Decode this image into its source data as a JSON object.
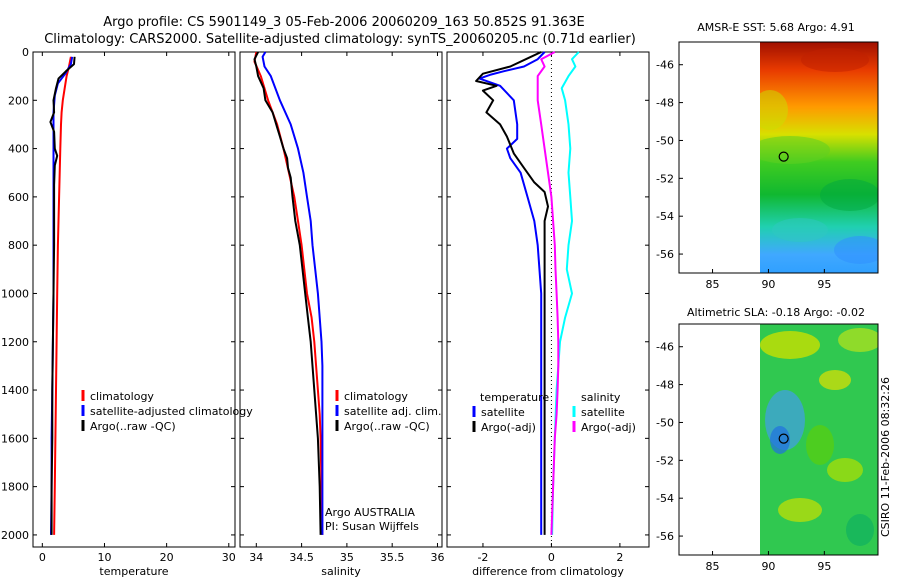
{
  "title_line1": "Argo profile: CS 5901149_3 05-Feb-2006 20060209_163 50.852S 91.363E",
  "title_line2": "Climatology: CARS2000. Satellite-adjusted climatology: synTS_20060205.nc (0.71d earlier)",
  "credit": "CSIRO 11-Feb-2006 08:32:26",
  "colors": {
    "climatology": "#ff0000",
    "satellite": "#0000ff",
    "argo": "#000000",
    "salinity_satellite": "#00ffff",
    "salinity_argo": "#ff00ff"
  },
  "chart_data": [
    {
      "id": "temperature",
      "type": "line",
      "xlabel": "temperature",
      "xlim": [
        -1.5,
        31
      ],
      "ylim": [
        2050,
        0
      ],
      "xticks": [
        "0",
        "10",
        "20",
        "30"
      ],
      "xtick_values": [
        0,
        10,
        20,
        30
      ],
      "yticks": [
        "0",
        "200",
        "400",
        "600",
        "800",
        "1000",
        "1200",
        "1400",
        "1600",
        "1800",
        "2000"
      ],
      "ytick_values": [
        0,
        200,
        400,
        600,
        800,
        1000,
        1200,
        1400,
        1600,
        1800,
        2000
      ],
      "legend": [
        "climatology",
        "satellite-adjusted climatology",
        "Argo(..raw -QC)"
      ],
      "series": [
        {
          "name": "climatology",
          "color": "#ff0000",
          "points": [
            [
              4.6,
              20
            ],
            [
              4.3,
              60
            ],
            [
              3.9,
              100
            ],
            [
              3.6,
              150
            ],
            [
              3.3,
              200
            ],
            [
              3.1,
              250
            ],
            [
              3.0,
              300
            ],
            [
              2.9,
              400
            ],
            [
              2.8,
              500
            ],
            [
              2.7,
              600
            ],
            [
              2.6,
              700
            ],
            [
              2.5,
              800
            ],
            [
              2.4,
              1000
            ],
            [
              2.3,
              1200
            ],
            [
              2.2,
              1400
            ],
            [
              2.1,
              1600
            ],
            [
              2.0,
              1800
            ],
            [
              1.9,
              2000
            ]
          ]
        },
        {
          "name": "satellite-adjusted climatology",
          "color": "#0000ff",
          "points": [
            [
              4.8,
              20
            ],
            [
              4.6,
              50
            ],
            [
              3.7,
              90
            ],
            [
              2.5,
              130
            ],
            [
              2.0,
              180
            ],
            [
              1.8,
              250
            ],
            [
              1.8,
              350
            ],
            [
              1.8,
              450
            ],
            [
              1.8,
              600
            ],
            [
              1.8,
              800
            ],
            [
              1.8,
              1000
            ],
            [
              1.7,
              1200
            ],
            [
              1.6,
              1400
            ],
            [
              1.5,
              1600
            ],
            [
              1.5,
              1800
            ],
            [
              1.4,
              2000
            ]
          ]
        },
        {
          "name": "Argo(..raw -QC)",
          "color": "#000000",
          "points": [
            [
              5.2,
              20
            ],
            [
              5.1,
              50
            ],
            [
              3.8,
              80
            ],
            [
              2.6,
              110
            ],
            [
              2.2,
              150
            ],
            [
              1.8,
              200
            ],
            [
              1.9,
              250
            ],
            [
              1.3,
              290
            ],
            [
              1.9,
              330
            ],
            [
              2.0,
              400
            ],
            [
              2.4,
              430
            ],
            [
              2.0,
              470
            ],
            [
              1.9,
              550
            ],
            [
              1.9,
              650
            ],
            [
              1.9,
              800
            ],
            [
              1.8,
              1000
            ],
            [
              1.7,
              1200
            ],
            [
              1.6,
              1400
            ],
            [
              1.6,
              1600
            ],
            [
              1.5,
              1800
            ],
            [
              1.5,
              2000
            ]
          ]
        }
      ]
    },
    {
      "id": "salinity",
      "type": "line",
      "xlabel": "salinity",
      "xlim": [
        33.82,
        36.05
      ],
      "ylim": [
        2050,
        0
      ],
      "xticks": [
        "34",
        "34.5",
        "35",
        "35.5",
        "36"
      ],
      "xtick_values": [
        34,
        34.5,
        35,
        35.5,
        36
      ],
      "legend": [
        "climatology",
        "satellite adj. clim.",
        "Argo(..raw -QC)"
      ],
      "annotation": [
        "Argo AUSTRALIA",
        "PI: Susan Wijffels"
      ],
      "series": [
        {
          "name": "climatology",
          "color": "#ff0000",
          "points": [
            [
              34.0,
              0
            ],
            [
              33.98,
              40
            ],
            [
              34.05,
              100
            ],
            [
              34.13,
              200
            ],
            [
              34.23,
              300
            ],
            [
              34.3,
              400
            ],
            [
              34.36,
              500
            ],
            [
              34.42,
              600
            ],
            [
              34.46,
              700
            ],
            [
              34.5,
              800
            ],
            [
              34.53,
              900
            ],
            [
              34.56,
              1000
            ],
            [
              34.61,
              1100
            ],
            [
              34.64,
              1200
            ],
            [
              34.66,
              1300
            ],
            [
              34.68,
              1400
            ],
            [
              34.7,
              1500
            ],
            [
              34.71,
              1600
            ],
            [
              34.72,
              1800
            ],
            [
              34.73,
              2000
            ]
          ]
        },
        {
          "name": "satellite adj. clim.",
          "color": "#0000ff",
          "points": [
            [
              34.1,
              0
            ],
            [
              34.07,
              20
            ],
            [
              34.09,
              60
            ],
            [
              34.16,
              100
            ],
            [
              34.26,
              200
            ],
            [
              34.38,
              300
            ],
            [
              34.46,
              400
            ],
            [
              34.52,
              500
            ],
            [
              34.56,
              600
            ],
            [
              34.6,
              700
            ],
            [
              34.62,
              800
            ],
            [
              34.65,
              900
            ],
            [
              34.68,
              1000
            ],
            [
              34.7,
              1100
            ],
            [
              34.72,
              1200
            ],
            [
              34.73,
              1300
            ],
            [
              34.73,
              1400
            ],
            [
              34.73,
              1600
            ],
            [
              34.73,
              1800
            ],
            [
              34.73,
              2000
            ]
          ]
        },
        {
          "name": "Argo(..raw -QC)",
          "color": "#000000",
          "points": [
            [
              34.02,
              0
            ],
            [
              33.98,
              30
            ],
            [
              34.0,
              60
            ],
            [
              34.02,
              100
            ],
            [
              34.08,
              150
            ],
            [
              34.1,
              200
            ],
            [
              34.18,
              250
            ],
            [
              34.22,
              300
            ],
            [
              34.26,
              350
            ],
            [
              34.3,
              400
            ],
            [
              34.34,
              440
            ],
            [
              34.35,
              480
            ],
            [
              34.38,
              520
            ],
            [
              34.4,
              600
            ],
            [
              34.43,
              700
            ],
            [
              34.48,
              800
            ],
            [
              34.51,
              900
            ],
            [
              34.54,
              1000
            ],
            [
              34.57,
              1100
            ],
            [
              34.6,
              1200
            ],
            [
              34.62,
              1300
            ],
            [
              34.64,
              1400
            ],
            [
              34.66,
              1500
            ],
            [
              34.68,
              1600
            ],
            [
              34.7,
              1800
            ],
            [
              34.71,
              2000
            ]
          ]
        }
      ]
    },
    {
      "id": "difference",
      "type": "line",
      "xlabel": "difference from climatology",
      "xlim": [
        -3.05,
        2.85
      ],
      "ylim": [
        2050,
        0
      ],
      "xticks": [
        "-2",
        "0",
        "2"
      ],
      "xtick_values": [
        -2,
        0,
        2
      ],
      "legend_left_header": "temperature",
      "legend_right_header": "salinity",
      "legend_left": [
        "satellite",
        "Argo(-adj)"
      ],
      "legend_right": [
        "satellite",
        "Argo(-adj)"
      ],
      "series": [
        {
          "name": "temperature satellite",
          "color": "#0000ff",
          "points": [
            [
              -0.2,
              0
            ],
            [
              -0.4,
              30
            ],
            [
              -0.8,
              60
            ],
            [
              -1.4,
              80
            ],
            [
              -1.8,
              95
            ],
            [
              -2.1,
              110
            ],
            [
              -1.5,
              140
            ],
            [
              -1.1,
              200
            ],
            [
              -1.0,
              300
            ],
            [
              -1.0,
              360
            ],
            [
              -1.3,
              400
            ],
            [
              -1.2,
              440
            ],
            [
              -0.9,
              500
            ],
            [
              -0.7,
              600
            ],
            [
              -0.5,
              700
            ],
            [
              -0.4,
              800
            ],
            [
              -0.3,
              1000
            ],
            [
              -0.3,
              1200
            ],
            [
              -0.3,
              1400
            ],
            [
              -0.3,
              1600
            ],
            [
              -0.3,
              1800
            ],
            [
              -0.3,
              2000
            ]
          ]
        },
        {
          "name": "temperature Argo(-adj)",
          "color": "#000000",
          "points": [
            [
              -0.3,
              0
            ],
            [
              -0.6,
              20
            ],
            [
              -1.2,
              60
            ],
            [
              -2.0,
              90
            ],
            [
              -2.2,
              120
            ],
            [
              -1.6,
              140
            ],
            [
              -2.0,
              160
            ],
            [
              -1.7,
              200
            ],
            [
              -1.9,
              250
            ],
            [
              -1.5,
              300
            ],
            [
              -1.3,
              350
            ],
            [
              -1.1,
              420
            ],
            [
              -0.8,
              480
            ],
            [
              -0.5,
              540
            ],
            [
              -0.2,
              580
            ],
            [
              -0.1,
              640
            ],
            [
              -0.2,
              700
            ],
            [
              -0.2,
              800
            ],
            [
              -0.2,
              1000
            ],
            [
              -0.2,
              1200
            ],
            [
              -0.2,
              1400
            ],
            [
              -0.2,
              1600
            ],
            [
              -0.2,
              1800
            ],
            [
              -0.2,
              2000
            ]
          ]
        },
        {
          "name": "salinity satellite",
          "color": "#00ffff",
          "points": [
            [
              0.8,
              0
            ],
            [
              0.6,
              30
            ],
            [
              0.7,
              60
            ],
            [
              0.5,
              100
            ],
            [
              0.3,
              150
            ],
            [
              0.4,
              200
            ],
            [
              0.5,
              300
            ],
            [
              0.55,
              400
            ],
            [
              0.5,
              500
            ],
            [
              0.55,
              600
            ],
            [
              0.6,
              700
            ],
            [
              0.5,
              800
            ],
            [
              0.45,
              900
            ],
            [
              0.6,
              1000
            ],
            [
              0.4,
              1100
            ],
            [
              0.25,
              1200
            ],
            [
              0.2,
              1300
            ],
            [
              0.15,
              1400
            ],
            [
              0.1,
              1600
            ],
            [
              0.05,
              1800
            ],
            [
              0.02,
              2000
            ]
          ]
        },
        {
          "name": "salinity Argo(-adj)",
          "color": "#ff00ff",
          "points": [
            [
              0.1,
              0
            ],
            [
              -0.3,
              30
            ],
            [
              -0.2,
              60
            ],
            [
              -0.4,
              100
            ],
            [
              -0.4,
              200
            ],
            [
              -0.3,
              300
            ],
            [
              -0.2,
              400
            ],
            [
              -0.1,
              500
            ],
            [
              0.0,
              600
            ],
            [
              0.05,
              700
            ],
            [
              0.1,
              800
            ],
            [
              0.12,
              900
            ],
            [
              0.15,
              1000
            ],
            [
              0.18,
              1100
            ],
            [
              0.2,
              1200
            ],
            [
              0.2,
              1300
            ],
            [
              0.18,
              1400
            ],
            [
              0.15,
              1500
            ],
            [
              0.1,
              1600
            ],
            [
              0.05,
              1800
            ],
            [
              0.0,
              2000
            ]
          ]
        }
      ]
    },
    {
      "id": "sst_map",
      "type": "heatmap",
      "title": "AMSR-E SST: 5.68 Argo: 4.91",
      "xlim": [
        82,
        99.8
      ],
      "ylim": [
        -57,
        -44.8
      ],
      "xticks": [
        "85",
        "90",
        "95"
      ],
      "xtick_values": [
        85,
        90,
        95
      ],
      "yticks": [
        "-46",
        "-48",
        "-50",
        "-52",
        "-54",
        "-56"
      ],
      "ytick_values": [
        -46,
        -48,
        -50,
        -52,
        -54,
        -56
      ],
      "data_lon_range": [
        90,
        99.8
      ],
      "marker": {
        "lon": 91.363,
        "lat": -50.852
      }
    },
    {
      "id": "sla_map",
      "type": "heatmap",
      "title": "Altimetric SLA: -0.18 Argo: -0.02",
      "xlim": [
        82,
        99.8
      ],
      "ylim": [
        -57,
        -44.8
      ],
      "xticks": [
        "85",
        "90",
        "95"
      ],
      "xtick_values": [
        85,
        90,
        95
      ],
      "yticks": [
        "-46",
        "-48",
        "-50",
        "-52",
        "-54",
        "-56"
      ],
      "ytick_values": [
        -46,
        -48,
        -50,
        -52,
        -54,
        -56
      ],
      "data_lon_range": [
        90,
        99.8
      ],
      "marker": {
        "lon": 91.363,
        "lat": -50.852
      }
    }
  ]
}
